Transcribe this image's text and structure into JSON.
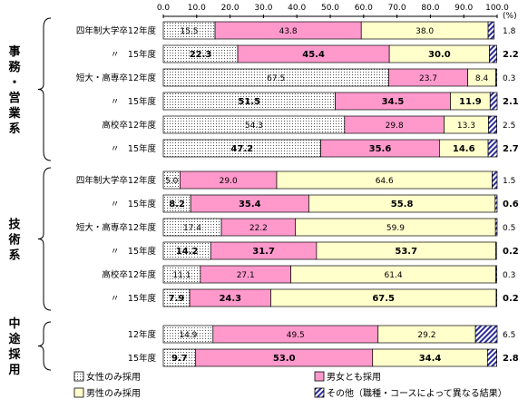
{
  "chart_data": {
    "type": "bar",
    "orientation": "horizontal",
    "stacked": true,
    "unit": "(%)",
    "xlim": [
      0,
      100
    ],
    "ticks": [
      "0.0",
      "10.0",
      "20.0",
      "30.0",
      "40.0",
      "50.0",
      "60.0",
      "70.0",
      "80.0",
      "90.0",
      "100.0"
    ],
    "series": [
      {
        "name": "女性のみ採用",
        "color": "#ffffff",
        "pattern": "dots"
      },
      {
        "name": "男女とも採用",
        "color": "#ff99cc",
        "pattern": "solid"
      },
      {
        "name": "男性のみ採用",
        "color": "#ffffcc",
        "pattern": "solid"
      },
      {
        "name": "その他（職種・コースによって異なる結果）",
        "color": "#3333aa",
        "pattern": "hatch"
      }
    ],
    "groups": [
      {
        "label": "事務・営業系",
        "rows": [
          {
            "label": "四年制大学卒12年度",
            "values": [
              15.5,
              43.8,
              38.0,
              1.8
            ],
            "bold": false
          },
          {
            "label": "〃　15年度",
            "values": [
              22.3,
              45.4,
              30.0,
              2.2
            ],
            "bold": true
          },
          {
            "label": "短大・高専卒12年度",
            "values": [
              67.5,
              23.7,
              8.4,
              0.3
            ],
            "bold": false
          },
          {
            "label": "〃　15年度",
            "values": [
              51.5,
              34.5,
              11.9,
              2.1
            ],
            "bold": true
          },
          {
            "label": "高校卒12年度",
            "values": [
              54.3,
              29.8,
              13.3,
              2.5
            ],
            "bold": false
          },
          {
            "label": "〃　15年度",
            "values": [
              47.2,
              35.6,
              14.6,
              2.7
            ],
            "bold": true
          }
        ]
      },
      {
        "label": "技術系",
        "rows": [
          {
            "label": "四年制大学卒12年度",
            "values": [
              5.0,
              29.0,
              64.6,
              1.5
            ],
            "bold": false
          },
          {
            "label": "〃　15年度",
            "values": [
              8.2,
              35.4,
              55.8,
              0.6
            ],
            "bold": true
          },
          {
            "label": "短大・高専卒12年度",
            "values": [
              17.4,
              22.2,
              59.9,
              0.5
            ],
            "bold": false
          },
          {
            "label": "〃　15年度",
            "values": [
              14.2,
              31.7,
              53.7,
              0.2
            ],
            "bold": true
          },
          {
            "label": "高校卒12年度",
            "values": [
              11.1,
              27.1,
              61.4,
              0.3
            ],
            "bold": false
          },
          {
            "label": "〃　15年度",
            "values": [
              7.9,
              24.3,
              67.5,
              0.2
            ],
            "bold": true
          }
        ]
      },
      {
        "label": "中途採用",
        "rows": [
          {
            "label": "12年度",
            "values": [
              14.9,
              49.5,
              29.2,
              6.5
            ],
            "bold": false
          },
          {
            "label": "15年度",
            "values": [
              9.7,
              53.0,
              34.4,
              2.8
            ],
            "bold": true
          }
        ]
      }
    ],
    "legend_position": "bottom"
  }
}
